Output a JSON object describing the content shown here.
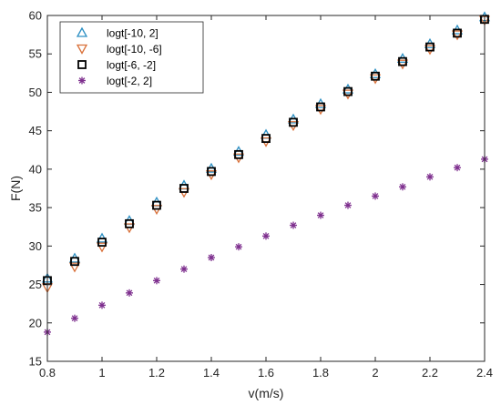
{
  "chart_data": {
    "type": "scatter",
    "title": "",
    "xlabel": "v(m/s)",
    "ylabel": "F(N)",
    "xlim": [
      0.8,
      2.4
    ],
    "ylim": [
      15,
      60
    ],
    "xticks": [
      "0.8",
      "1",
      "1.2",
      "1.4",
      "1.6",
      "1.8",
      "2",
      "2.2",
      "2.4"
    ],
    "yticks": [
      "15",
      "20",
      "25",
      "30",
      "35",
      "40",
      "45",
      "50",
      "55",
      "60"
    ],
    "grid": false,
    "legend_position": "top-left",
    "x": [
      0.8,
      0.9,
      1.0,
      1.1,
      1.2,
      1.3,
      1.4,
      1.5,
      1.6,
      1.7,
      1.8,
      1.9,
      2.0,
      2.1,
      2.2,
      2.3,
      2.4
    ],
    "series": [
      {
        "name": "logt[-10, 2]",
        "marker": "triangle-up",
        "color": "#2c8fc3",
        "values": [
          25.8,
          28.4,
          31.0,
          33.3,
          35.7,
          37.9,
          40.1,
          42.3,
          44.5,
          46.5,
          48.5,
          50.4,
          52.4,
          54.4,
          56.3,
          58.1,
          59.8
        ]
      },
      {
        "name": "logt[-10, -6]",
        "marker": "triangle-down",
        "color": "#d9713a",
        "values": [
          24.6,
          27.3,
          29.9,
          32.4,
          34.8,
          37.0,
          39.3,
          41.5,
          43.6,
          45.7,
          47.8,
          49.8,
          51.8,
          53.7,
          55.6,
          57.5,
          59.4
        ]
      },
      {
        "name": "logt[-6, -2]",
        "marker": "square",
        "color": "#000000",
        "values": [
          25.5,
          28.0,
          30.5,
          32.9,
          35.3,
          37.5,
          39.7,
          41.9,
          44.0,
          46.1,
          48.1,
          50.1,
          52.1,
          54.0,
          55.9,
          57.7,
          59.5
        ]
      },
      {
        "name": "logt[-2, 2]",
        "marker": "asterisk",
        "color": "#7e2f8e",
        "values": [
          18.8,
          20.6,
          22.3,
          23.9,
          25.5,
          27.0,
          28.5,
          29.9,
          31.3,
          32.7,
          34.0,
          35.3,
          36.5,
          37.7,
          39.0,
          40.2,
          41.3
        ]
      }
    ]
  }
}
